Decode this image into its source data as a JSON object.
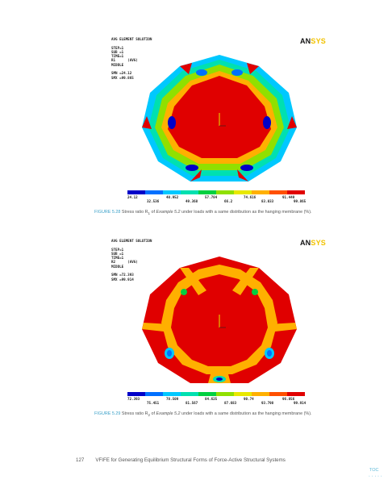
{
  "figures": [
    {
      "solution_lines": "AVG ELEMENT SOLUTION\n\nSTEP=1\nSUB =1\nTIME=1\nR1      (AVG)\nMIDDLE\n\nSMN =24.12\nSMX =99.865",
      "legend_row_a": [
        "24.12",
        "40.952",
        "57.784",
        "74.616",
        "91.449"
      ],
      "legend_row_b": [
        "32.536",
        "49.368",
        "66.2",
        "83.033",
        "99.865"
      ],
      "caption_num": "FIGURE 5.28",
      "caption_pre": "  Stress ratio R",
      "caption_sub": "1",
      "caption_mid": " of ",
      "caption_ex": "Example 5.2",
      "caption_post": " under loads with a same distribution as the hanging membrane (%)."
    },
    {
      "solution_lines": "AVG ELEMENT SOLUTION\n\nSTEP=1\nSUB =1\nTIME=1\nR2      (AVG)\nMIDDLE\n\nSMN =72.393\nSMX =99.914",
      "legend_row_a": [
        "72.393",
        "78.509",
        "84.625",
        "90.74",
        "96.856"
      ],
      "legend_row_b": [
        "75.451",
        "81.567",
        "87.683",
        "93.798",
        "99.914"
      ],
      "caption_num": "FIGURE 5.29",
      "caption_pre": "  Stress ratio R",
      "caption_sub": "2",
      "caption_mid": " of ",
      "caption_ex": "Example 5.2",
      "caption_post": " under loads with a same distribution as the hanging membrane (%)."
    }
  ],
  "ansys": {
    "an": "AN",
    "sys": "SYS"
  },
  "legend_colors": [
    "#0000c8",
    "#0070ff",
    "#00c8ff",
    "#00e0b0",
    "#00d040",
    "#90e000",
    "#e8e800",
    "#ffb000",
    "#ff5000",
    "#e00000"
  ],
  "footer": {
    "page_number": "127",
    "title": "VFIFE for Generating Equilibrium Structural Forms of Force-Active Structural Systems",
    "toc": "TOC",
    "toc_dots": "• • • • •"
  }
}
